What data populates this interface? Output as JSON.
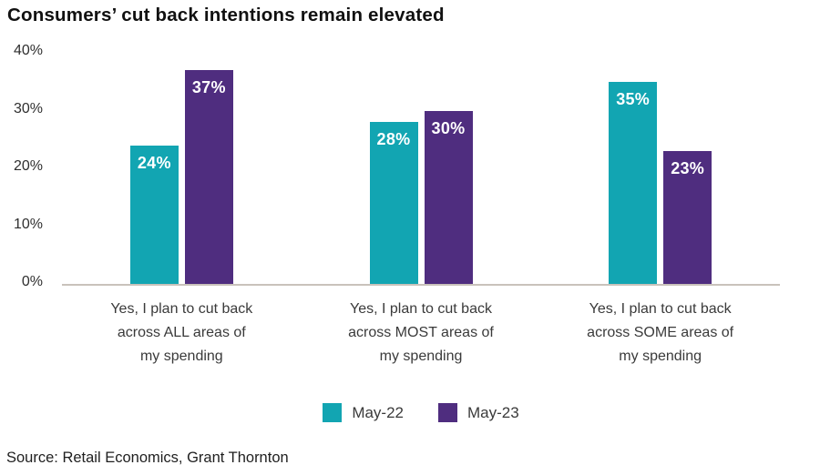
{
  "chart": {
    "title": "Consumers’ cut back intentions remain elevated"
  },
  "source": "Source: Retail Economics, Grant Thornton",
  "colors": {
    "teal": "#12A5B2",
    "purple": "#4F2D7F",
    "axis_line": "#C9C2BB",
    "tick_text": "#2F2F2F",
    "category_text": "#3A3A3A",
    "title_text": "#111111",
    "data_label_text": "#FFFFFF",
    "background": "#FFFFFF"
  },
  "chart_data": {
    "type": "bar",
    "title": "Consumers’ cut back intentions remain elevated",
    "categories": [
      [
        "Yes, I plan to cut back",
        "across ALL areas of",
        "my spending"
      ],
      [
        "Yes, I plan to cut back",
        "across MOST areas of",
        "my spending"
      ],
      [
        "Yes, I plan to cut back",
        "across SOME areas of",
        "my spending"
      ]
    ],
    "series": [
      {
        "name": "May-22",
        "color": "#12A5B2",
        "values": [
          24,
          28,
          35
        ]
      },
      {
        "name": "May-23",
        "color": "#4F2D7F",
        "values": [
          37,
          30,
          23
        ]
      }
    ],
    "ylim": [
      0,
      40
    ],
    "yticks": [
      0,
      10,
      20,
      30,
      40
    ],
    "ytick_format": "{v}%",
    "data_label_format": "{v}%",
    "grid": false,
    "legend_position": "bottom",
    "data_labels": true
  }
}
